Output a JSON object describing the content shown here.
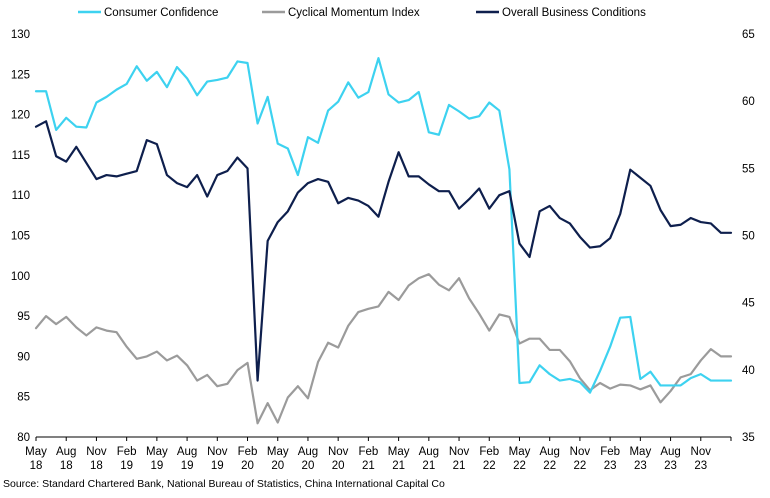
{
  "chart_data": {
    "type": "line",
    "title": "",
    "source": "Source: Standard Chartered Bank, National Bureau of Statistics, China International Capital Co",
    "legend_position": "top",
    "grid": false,
    "left_axis": {
      "min": 80,
      "max": 130,
      "ticks": [
        80,
        85,
        90,
        95,
        100,
        105,
        110,
        115,
        120,
        125,
        130
      ]
    },
    "right_axis": {
      "min": 35,
      "max": 65,
      "ticks": [
        35,
        40,
        45,
        50,
        55,
        60,
        65
      ]
    },
    "x_ticks": [
      {
        "index": 0,
        "month": "May",
        "year": "18"
      },
      {
        "index": 3,
        "month": "Aug",
        "year": "18"
      },
      {
        "index": 6,
        "month": "Nov",
        "year": "18"
      },
      {
        "index": 9,
        "month": "Feb",
        "year": "19"
      },
      {
        "index": 12,
        "month": "May",
        "year": "19"
      },
      {
        "index": 15,
        "month": "Aug",
        "year": "19"
      },
      {
        "index": 18,
        "month": "Nov",
        "year": "19"
      },
      {
        "index": 21,
        "month": "Feb",
        "year": "20"
      },
      {
        "index": 24,
        "month": "May",
        "year": "20"
      },
      {
        "index": 27,
        "month": "Aug",
        "year": "20"
      },
      {
        "index": 30,
        "month": "Nov",
        "year": "20"
      },
      {
        "index": 33,
        "month": "Feb",
        "year": "21"
      },
      {
        "index": 36,
        "month": "May",
        "year": "21"
      },
      {
        "index": 39,
        "month": "Aug",
        "year": "21"
      },
      {
        "index": 42,
        "month": "Nov",
        "year": "21"
      },
      {
        "index": 45,
        "month": "Feb",
        "year": "22"
      },
      {
        "index": 48,
        "month": "May",
        "year": "22"
      },
      {
        "index": 51,
        "month": "Aug",
        "year": "22"
      },
      {
        "index": 54,
        "month": "Nov",
        "year": "22"
      },
      {
        "index": 57,
        "month": "Feb",
        "year": "23"
      },
      {
        "index": 60,
        "month": "May",
        "year": "23"
      },
      {
        "index": 63,
        "month": "Aug",
        "year": "23"
      },
      {
        "index": 66,
        "month": "Nov",
        "year": "23"
      }
    ],
    "x_last_index": 69,
    "series": [
      {
        "name": "Consumer Confidence",
        "axis": "left",
        "color": "#3dd2f0",
        "values": [
          122.9,
          122.9,
          118.1,
          119.6,
          118.5,
          118.4,
          121.5,
          122.2,
          123.1,
          123.8,
          126.0,
          124.2,
          125.3,
          123.4,
          125.9,
          124.5,
          122.4,
          124.1,
          124.3,
          124.6,
          126.6,
          126.4,
          118.9,
          122.2,
          116.4,
          115.8,
          112.5,
          117.2,
          116.5,
          120.5,
          121.6,
          124.0,
          122.1,
          122.8,
          127.0,
          122.5,
          121.5,
          121.8,
          122.8,
          117.8,
          117.5,
          121.2,
          120.4,
          119.5,
          119.8,
          121.5,
          120.5,
          113.2,
          86.7,
          86.8,
          88.9,
          87.8,
          87.0,
          87.2,
          86.8,
          85.5,
          88.2,
          91.2,
          94.8,
          94.9,
          87.2,
          88.1,
          86.4,
          86.4,
          86.4,
          87.3,
          87.8,
          87.0,
          87.0,
          87.0
        ]
      },
      {
        "name": "Cyclical Momentum Index",
        "axis": "left",
        "color": "#9b9b9b",
        "values": [
          93.5,
          95.0,
          94.0,
          94.9,
          93.6,
          92.6,
          93.6,
          93.2,
          93.0,
          91.2,
          89.7,
          90.0,
          90.6,
          89.5,
          90.1,
          88.9,
          87.0,
          87.7,
          86.3,
          86.6,
          88.3,
          89.2,
          81.7,
          84.2,
          81.8,
          84.9,
          86.3,
          84.8,
          89.3,
          91.7,
          91.1,
          93.8,
          95.5,
          95.9,
          96.2,
          98.0,
          97.0,
          98.8,
          99.7,
          100.2,
          98.9,
          98.2,
          99.7,
          97.2,
          95.3,
          93.2,
          95.2,
          94.9,
          91.6,
          92.2,
          92.2,
          90.8,
          90.8,
          89.4,
          87.3,
          85.8,
          86.7,
          86.0,
          86.5,
          86.4,
          85.9,
          86.4,
          84.3,
          85.7,
          87.4,
          87.8,
          89.5,
          90.9,
          90.0,
          90.0
        ]
      },
      {
        "name": "Overall Business Conditions",
        "axis": "right",
        "color": "#0e1f4d",
        "values": [
          58.1,
          58.5,
          55.9,
          55.5,
          56.6,
          55.4,
          54.2,
          54.5,
          54.4,
          54.6,
          54.8,
          57.1,
          56.8,
          54.5,
          53.9,
          53.6,
          54.5,
          52.9,
          54.5,
          54.8,
          55.8,
          55.0,
          39.2,
          49.6,
          51.0,
          51.8,
          53.2,
          53.9,
          54.2,
          54.0,
          52.4,
          52.8,
          52.6,
          52.2,
          51.4,
          54.0,
          56.2,
          54.4,
          54.4,
          53.8,
          53.3,
          53.3,
          52.0,
          52.7,
          53.5,
          52.0,
          53.0,
          53.3,
          49.4,
          48.4,
          51.8,
          52.2,
          51.3,
          50.9,
          49.9,
          49.1,
          49.2,
          49.8,
          51.6,
          54.9,
          54.3,
          53.7,
          51.9,
          50.7,
          50.8,
          51.3,
          51.0,
          50.9,
          50.2,
          50.2
        ]
      }
    ]
  }
}
